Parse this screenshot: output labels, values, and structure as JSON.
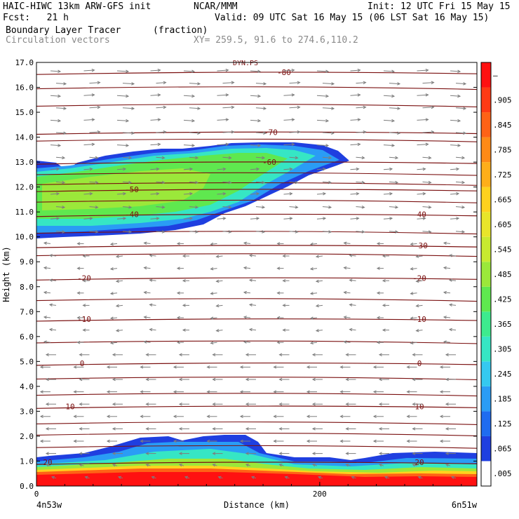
{
  "header": {
    "model": "HAIC-HIWC 13km ARW-GFS init",
    "org": "NCAR/MMM",
    "init": "Init: 12 UTC Fri 15 May 15",
    "fcst": "Fcst:   21 h",
    "valid": "Valid: 09 UTC Sat 16 May 15 (06 LST Sat 16 May 15)",
    "field1": "Boundary Layer Tracer",
    "field1_units": "(fraction)",
    "field2": "Circulation vectors",
    "xy": "XY= 259.5, 91.6 to 274.6,110.2"
  },
  "chart_data": {
    "type": "contour-cross-section",
    "xlabel": "Distance (km)",
    "ylabel": "Height (km)",
    "xlim": [
      0,
      311
    ],
    "ylim": [
      0,
      17
    ],
    "x_ticks": [
      "0",
      "200"
    ],
    "y_ticks": [
      "0.0",
      "1.0",
      "2.0",
      "3.0",
      "4.0",
      "5.0",
      "6.0",
      "7.0",
      "8.0",
      "9.0",
      "10.0",
      "11.0",
      "12.0",
      "13.0",
      "14.0",
      "15.0",
      "16.0",
      "17.0"
    ],
    "left_endpoint": "4n53w",
    "right_endpoint": "6n51w",
    "colorbar": {
      "labels": [
        ".005",
        ".065",
        ".125",
        ".185",
        ".245",
        ".305",
        ".365",
        ".425",
        ".485",
        ".545",
        ".605",
        ".665",
        ".725",
        ".785",
        ".845",
        ".905",
        "—"
      ],
      "colors": [
        "#ffffff",
        "#1f3fe0",
        "#1f6cf0",
        "#2a9cf5",
        "#35c9f0",
        "#36e6c4",
        "#3deb8e",
        "#5fe84f",
        "#9be83a",
        "#c8ea30",
        "#e8e52a",
        "#ffd21e",
        "#ffae1a",
        "#ff8a17",
        "#ff6216",
        "#ff3a14",
        "#ff1111"
      ]
    },
    "temperature_contours": [
      {
        "label": "-80",
        "y_km": 16.6
      },
      {
        "label": "-70",
        "y_km": 14.2
      },
      {
        "label": "-60",
        "y_km": 13.0
      },
      {
        "label": "-50",
        "y_km": 11.9
      },
      {
        "label": "-40",
        "y_km": 10.9
      },
      {
        "label": "-30",
        "y_km": 9.65
      },
      {
        "label": "-20",
        "y_km": 8.35
      },
      {
        "label": "-10",
        "y_km": 6.7
      },
      {
        "label": "0",
        "y_km": 4.93
      },
      {
        "label": "10",
        "y_km": 3.2
      },
      {
        "label": "20",
        "y_km": 0.95
      }
    ],
    "tropopause_label": "DYN.PS"
  }
}
